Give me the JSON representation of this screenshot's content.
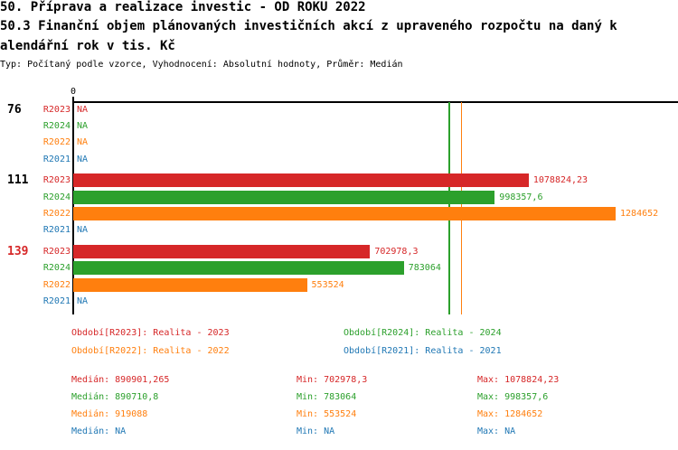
{
  "header": {
    "title": "50. Příprava a realizace investic - OD ROKU 2022",
    "subtitle_line1": "50.3 Finanční objem plánovaných investičních akcí z upraveného rozpočtu na daný k",
    "subtitle_line2": "alendářní rok v tis. Kč",
    "meta": "Typ: Počítaný podle vzorce, Vyhodnocení: Absolutní hodnoty, Průměr: Medián"
  },
  "colors": {
    "R2023": "#d62728",
    "R2024": "#2ca02c",
    "R2022": "#ff7f0e",
    "R2021": "#1f77b4",
    "axis": "#000000",
    "background": "#ffffff"
  },
  "chart_data": {
    "type": "bar",
    "orientation": "horizontal",
    "title": "50.3 Finanční objem plánovaných investičních akcí z upraveného rozpočtu na daný kalendářní rok v tis. Kč",
    "x0_label": "0",
    "axis_max": 1432329,
    "na_label": "NA",
    "series": [
      "R2023",
      "R2024",
      "R2022",
      "R2021"
    ],
    "groups": [
      {
        "label": "76",
        "label_color": "#000000",
        "bars": [
          {
            "series": "R2023",
            "value": null,
            "text": "NA"
          },
          {
            "series": "R2024",
            "value": null,
            "text": "NA"
          },
          {
            "series": "R2022",
            "value": null,
            "text": "NA"
          },
          {
            "series": "R2021",
            "value": null,
            "text": "NA"
          }
        ]
      },
      {
        "label": "111",
        "label_color": "#000000",
        "bars": [
          {
            "series": "R2023",
            "value": 1078824.23,
            "text": "1078824,23"
          },
          {
            "series": "R2024",
            "value": 998357.6,
            "text": "998357,6"
          },
          {
            "series": "R2022",
            "value": 1284652,
            "text": "1284652"
          },
          {
            "series": "R2021",
            "value": null,
            "text": "NA"
          }
        ]
      },
      {
        "label": "139",
        "label_color": "#d62728",
        "bars": [
          {
            "series": "R2023",
            "value": 702978.3,
            "text": "702978,3"
          },
          {
            "series": "R2024",
            "value": 783064,
            "text": "783064"
          },
          {
            "series": "R2022",
            "value": 553524,
            "text": "553524"
          },
          {
            "series": "R2021",
            "value": null,
            "text": "NA"
          }
        ]
      }
    ],
    "median_lines": [
      {
        "series": "R2023",
        "value": 890901.265,
        "color": "#d62728"
      },
      {
        "series": "R2024",
        "value": 890710.8,
        "color": "#2ca02c"
      },
      {
        "series": "R2022",
        "value": 919088,
        "color": "#ff7f0e"
      }
    ]
  },
  "legend": {
    "items": [
      {
        "text": "Období[R2023]: Realita - 2023",
        "color": "#d62728"
      },
      {
        "text": "Období[R2024]: Realita - 2024",
        "color": "#2ca02c"
      },
      {
        "text": "Období[R2022]: Realita - 2022",
        "color": "#ff7f0e"
      },
      {
        "text": "Období[R2021]: Realita - 2021",
        "color": "#1f77b4"
      }
    ]
  },
  "stats": {
    "rows": [
      {
        "color": "#d62728",
        "median": "Medián: 890901,265",
        "min": "Min: 702978,3",
        "max": "Max: 1078824,23"
      },
      {
        "color": "#2ca02c",
        "median": "Medián: 890710,8",
        "min": "Min: 783064",
        "max": "Max: 998357,6"
      },
      {
        "color": "#ff7f0e",
        "median": "Medián: 919088",
        "min": "Min: 553524",
        "max": "Max: 1284652"
      },
      {
        "color": "#1f77b4",
        "median": "Medián: NA",
        "min": "Min: NA",
        "max": "Max: NA"
      }
    ]
  }
}
